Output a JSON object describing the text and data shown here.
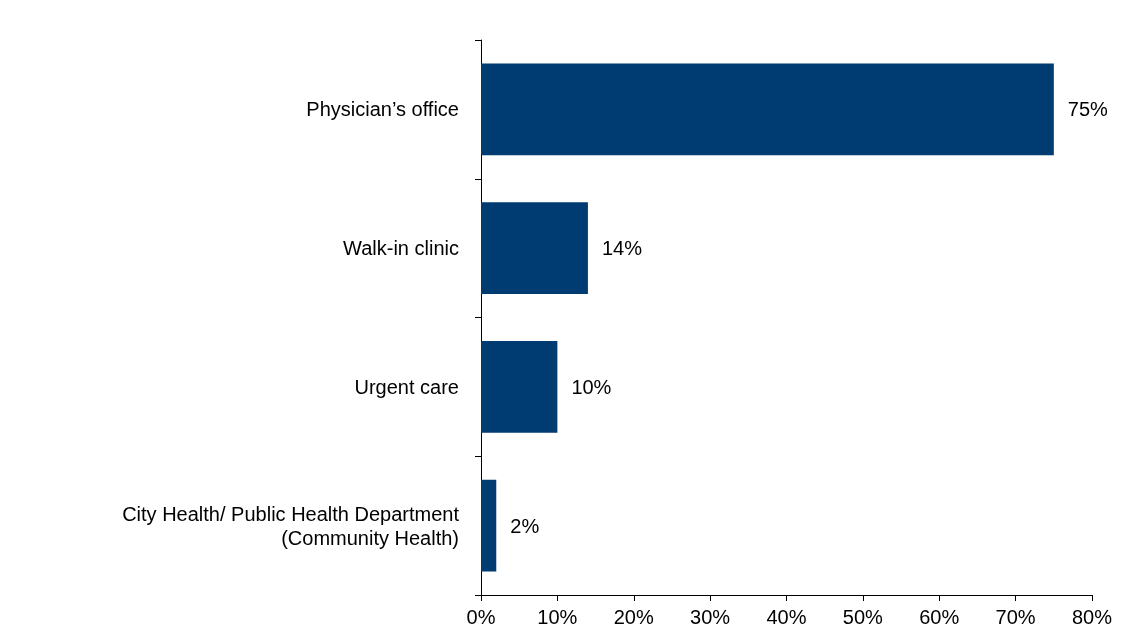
{
  "chart_data": {
    "type": "bar",
    "orientation": "horizontal",
    "categories": [
      "Physician’s office",
      "Walk-in clinic",
      "Urgent care",
      "City Health/ Public Health Department\n(Community Health)"
    ],
    "values": [
      75,
      14,
      10,
      2
    ],
    "color": "#003b71",
    "value_labels": [
      "75%",
      "14%",
      "10%",
      "2%"
    ],
    "xlim": [
      0,
      80
    ],
    "xticks": [
      {
        "value": 0,
        "label": "0%"
      },
      {
        "value": 10,
        "label": "10%"
      },
      {
        "value": 20,
        "label": "20%"
      },
      {
        "value": 30,
        "label": "30%"
      },
      {
        "value": 40,
        "label": "40%"
      },
      {
        "value": 50,
        "label": "50%"
      },
      {
        "value": 60,
        "label": "60%"
      },
      {
        "value": 70,
        "label": "70%"
      },
      {
        "value": 80,
        "label": "80%"
      }
    ],
    "grid": false
  }
}
